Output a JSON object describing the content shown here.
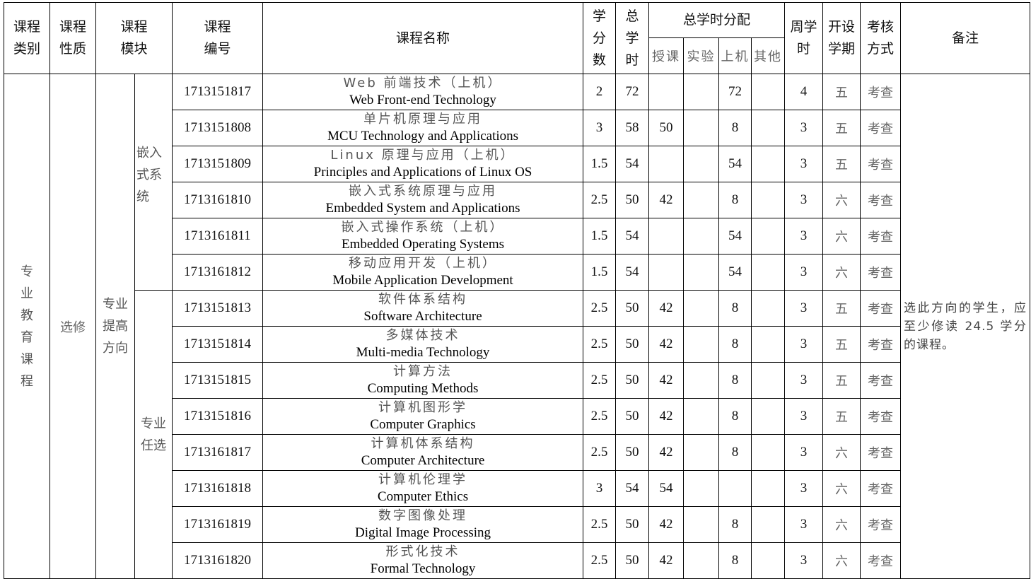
{
  "header": {
    "category": "课程类别",
    "nature": "课程性质",
    "module": "课程模块",
    "code": "课程编号",
    "name": "课程名称",
    "credits": "学分数",
    "total_hours": "总学时",
    "distribution": "总学时分配",
    "lecture": "授课",
    "experiment": "实验",
    "computer": "上机",
    "other": "其他",
    "weekly_hours": "周学时",
    "semester": "开设学期",
    "assessment": "考核方式",
    "remarks": "备注"
  },
  "category": "专业教育课程",
  "nature": "选修",
  "module": "专业提高方向",
  "submodules": [
    "嵌入式系统",
    "专业任选"
  ],
  "remarks": "选此方向的学生，应至少修读 24.5 学分的课程。",
  "rows": [
    {
      "code": "1713151817",
      "cn": "Web 前端技术（上机）",
      "en": "Web Front-end Technology",
      "credits": "2",
      "total": "72",
      "lecture": "",
      "exp": "",
      "comp": "72",
      "other": "",
      "weekly": "4",
      "sem": "五",
      "assess": "考查"
    },
    {
      "code": "1713151808",
      "cn": "单片机原理与应用",
      "en": "MCU Technology and Applications",
      "credits": "3",
      "total": "58",
      "lecture": "50",
      "exp": "",
      "comp": "8",
      "other": "",
      "weekly": "3",
      "sem": "五",
      "assess": "考查"
    },
    {
      "code": "1713151809",
      "cn": "Linux 原理与应用（上机）",
      "en": "Principles and Applications of Linux OS",
      "credits": "1.5",
      "total": "54",
      "lecture": "",
      "exp": "",
      "comp": "54",
      "other": "",
      "weekly": "3",
      "sem": "五",
      "assess": "考查"
    },
    {
      "code": "1713161810",
      "cn": "嵌入式系统原理与应用",
      "en": "Embedded System and Applications",
      "credits": "2.5",
      "total": "50",
      "lecture": "42",
      "exp": "",
      "comp": "8",
      "other": "",
      "weekly": "3",
      "sem": "六",
      "assess": "考查"
    },
    {
      "code": "1713161811",
      "cn": "嵌入式操作系统（上机）",
      "en": "Embedded Operating Systems",
      "credits": "1.5",
      "total": "54",
      "lecture": "",
      "exp": "",
      "comp": "54",
      "other": "",
      "weekly": "3",
      "sem": "六",
      "assess": "考查"
    },
    {
      "code": "1713161812",
      "cn": "移动应用开发（上机）",
      "en": "Mobile Application Development",
      "credits": "1.5",
      "total": "54",
      "lecture": "",
      "exp": "",
      "comp": "54",
      "other": "",
      "weekly": "3",
      "sem": "六",
      "assess": "考查"
    },
    {
      "code": "1713151813",
      "cn": "软件体系结构",
      "en": "Software Architecture",
      "credits": "2.5",
      "total": "50",
      "lecture": "42",
      "exp": "",
      "comp": "8",
      "other": "",
      "weekly": "3",
      "sem": "五",
      "assess": "考查"
    },
    {
      "code": "1713151814",
      "cn": "多媒体技术",
      "en": "Multi-media Technology",
      "credits": "2.5",
      "total": "50",
      "lecture": "42",
      "exp": "",
      "comp": "8",
      "other": "",
      "weekly": "3",
      "sem": "五",
      "assess": "考查"
    },
    {
      "code": "1713151815",
      "cn": "计算方法",
      "en": "Computing Methods",
      "credits": "2.5",
      "total": "50",
      "lecture": "42",
      "exp": "",
      "comp": "8",
      "other": "",
      "weekly": "3",
      "sem": "五",
      "assess": "考查"
    },
    {
      "code": "1713151816",
      "cn": "计算机图形学",
      "en": "Computer Graphics",
      "credits": "2.5",
      "total": "50",
      "lecture": "42",
      "exp": "",
      "comp": "8",
      "other": "",
      "weekly": "3",
      "sem": "五",
      "assess": "考查"
    },
    {
      "code": "1713161817",
      "cn": "计算机体系结构",
      "en": "Computer Architecture",
      "credits": "2.5",
      "total": "50",
      "lecture": "42",
      "exp": "",
      "comp": "8",
      "other": "",
      "weekly": "3",
      "sem": "六",
      "assess": "考查"
    },
    {
      "code": "1713161818",
      "cn": "计算机伦理学",
      "en": "Computer Ethics",
      "credits": "3",
      "total": "54",
      "lecture": "54",
      "exp": "",
      "comp": "",
      "other": "",
      "weekly": "3",
      "sem": "六",
      "assess": "考查"
    },
    {
      "code": "1713161819",
      "cn": "数字图像处理",
      "en": "Digital Image Processing",
      "credits": "2.5",
      "total": "50",
      "lecture": "42",
      "exp": "",
      "comp": "8",
      "other": "",
      "weekly": "3",
      "sem": "六",
      "assess": "考查"
    },
    {
      "code": "1713161820",
      "cn": "形式化技术",
      "en": "Formal Technology",
      "credits": "2.5",
      "total": "50",
      "lecture": "42",
      "exp": "",
      "comp": "8",
      "other": "",
      "weekly": "3",
      "sem": "六",
      "assess": "考查"
    }
  ]
}
